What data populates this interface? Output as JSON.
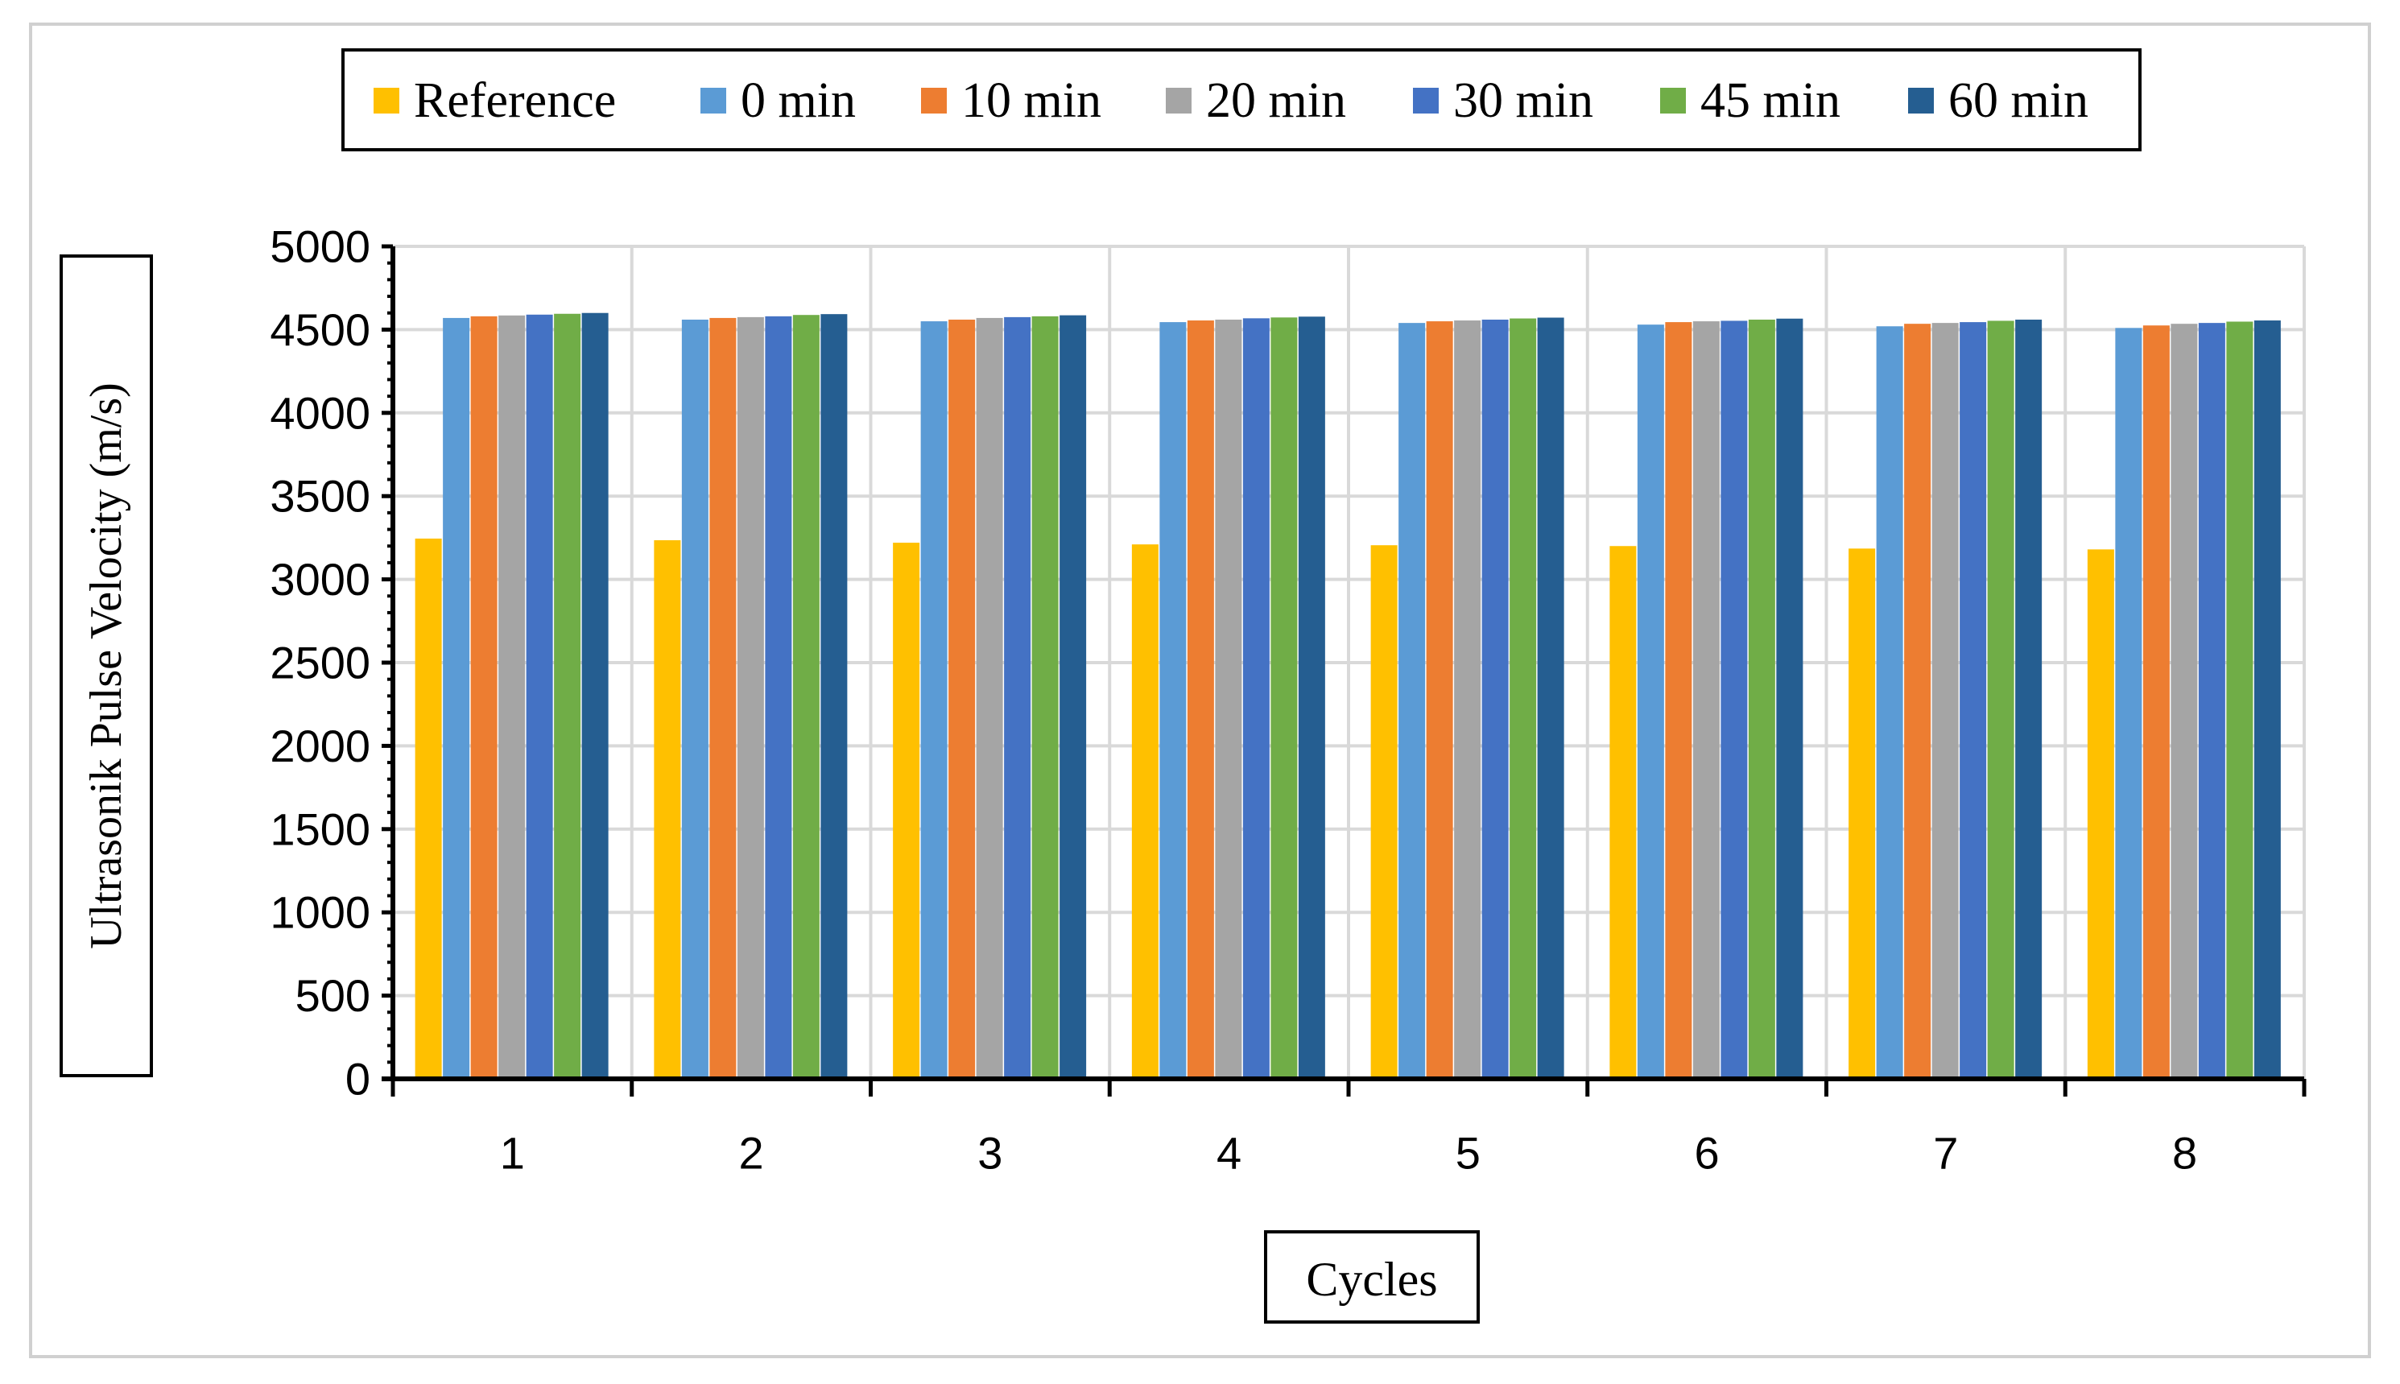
{
  "chart_data": {
    "type": "bar",
    "title": "",
    "xlabel": "Cycles",
    "ylabel": "Ultrasonik Pulse Velocity (m/s)",
    "ylim": [
      0,
      5000
    ],
    "yticks": [
      0,
      500,
      1000,
      1500,
      2000,
      2500,
      3000,
      3500,
      4000,
      4500,
      5000
    ],
    "grid": true,
    "legend_position": "top",
    "categories": [
      "1",
      "2",
      "3",
      "4",
      "5",
      "6",
      "7",
      "8"
    ],
    "series": [
      {
        "name": "Reference",
        "color": "#FFC000",
        "values": [
          3245,
          3235,
          3220,
          3210,
          3205,
          3200,
          3185,
          3180
        ]
      },
      {
        "name": "0 min",
        "color": "#5B9BD5",
        "values": [
          4570,
          4560,
          4550,
          4545,
          4540,
          4530,
          4520,
          4510
        ]
      },
      {
        "name": "10 min",
        "color": "#ED7D31",
        "values": [
          4580,
          4570,
          4560,
          4555,
          4550,
          4545,
          4535,
          4525
        ]
      },
      {
        "name": "20 min",
        "color": "#A5A5A5",
        "values": [
          4585,
          4575,
          4570,
          4560,
          4555,
          4550,
          4540,
          4535
        ]
      },
      {
        "name": "30 min",
        "color": "#4472C4",
        "values": [
          4590,
          4580,
          4575,
          4568,
          4560,
          4553,
          4545,
          4540
        ]
      },
      {
        "name": "45 min",
        "color": "#70AD47",
        "values": [
          4595,
          4588,
          4580,
          4573,
          4567,
          4560,
          4553,
          4548
        ]
      },
      {
        "name": "60 min",
        "color": "#255E91",
        "values": [
          4600,
          4593,
          4586,
          4578,
          4572,
          4566,
          4560,
          4555
        ]
      }
    ]
  }
}
